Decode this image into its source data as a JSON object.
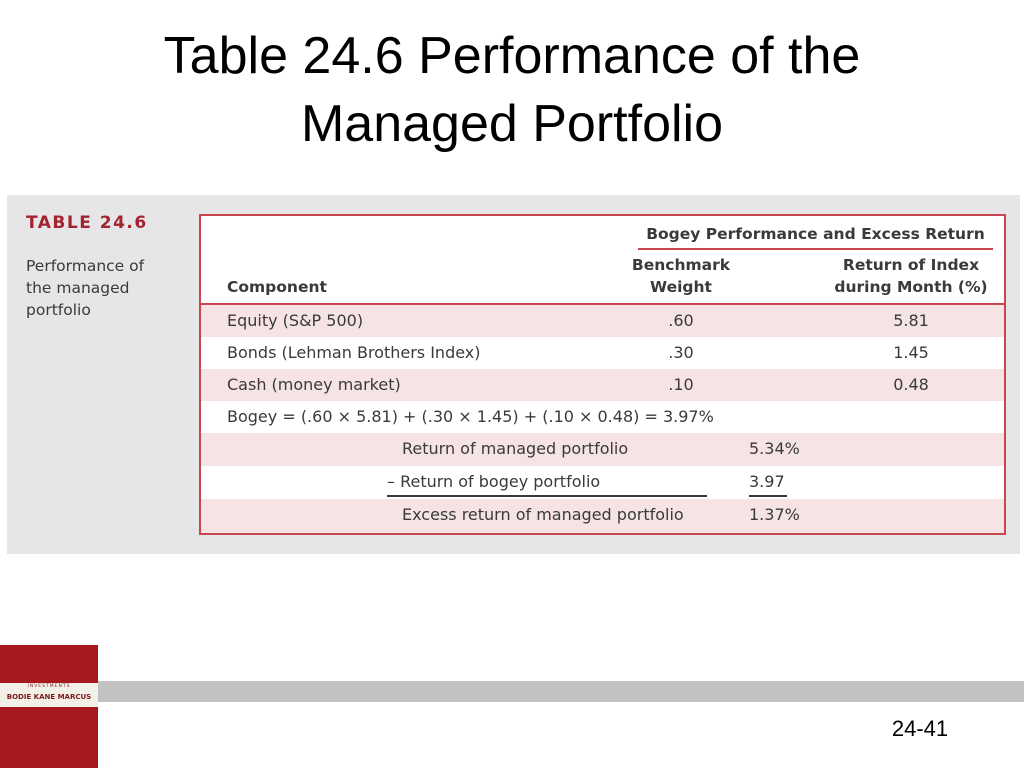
{
  "slide": {
    "title_line1": "Table 24.6 Performance of the",
    "title_line2": "Managed Portfolio",
    "page_number": "24-41"
  },
  "figure": {
    "label": "TABLE 24.6",
    "caption_line1": "Performance of",
    "caption_line2": "the managed",
    "caption_line3": "portfolio"
  },
  "table": {
    "group_header": "Bogey Performance and Excess Return",
    "col_component": "Component",
    "col_weight_line1": "Benchmark",
    "col_weight_line2": "Weight",
    "col_return_line1": "Return of Index",
    "col_return_line2": "during Month (%)",
    "rows": [
      {
        "component": "Equity (S&P 500)",
        "weight": ".60",
        "return": "5.81"
      },
      {
        "component": "Bonds (Lehman Brothers Index)",
        "weight": ".30",
        "return": "1.45"
      },
      {
        "component": "Cash (money market)",
        "weight": ".10",
        "return": "0.48"
      }
    ],
    "bogey_formula": "Bogey = (.60 × 5.81) + (.30 × 1.45) + (.10 × 0.48) = 3.97%",
    "summary": [
      {
        "label": "Return of managed portfolio",
        "value": "5.34%"
      },
      {
        "label": "– Return of bogey portfolio",
        "value": "3.97"
      },
      {
        "label": "Excess return of managed portfolio",
        "value": "1.37%"
      }
    ]
  },
  "branding": {
    "tagline": "INVESTMENTS",
    "authors": "BODIE  KANE  MARCUS"
  },
  "colors": {
    "accent": "#c9464f",
    "label": "#a3232f",
    "row_shade": "#f6e3e4",
    "panel": "#e6e6e8",
    "brand": "#a8191e",
    "footer_band": "#c2c2c2"
  }
}
